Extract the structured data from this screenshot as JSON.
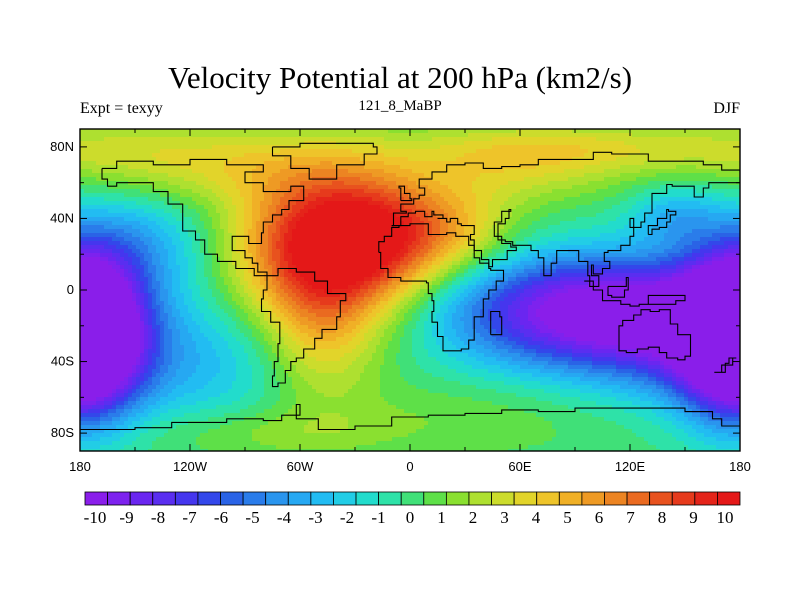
{
  "title": "Velocity Potential at 200 hPa (km2/s)",
  "left_string": "Expt = texyy",
  "center_string": "121_8_MaBP",
  "right_string": "DJF",
  "map": {
    "projection": "cylindrical equidistant",
    "lon_ticks": [
      "180",
      "120W",
      "60W",
      "0",
      "60E",
      "120E",
      "180"
    ],
    "lat_ticks": [
      "80N",
      "40N",
      "0",
      "40S",
      "80S"
    ]
  },
  "colorbar": {
    "labels": [
      "-10",
      "-9",
      "-8",
      "-7",
      "-6",
      "-5",
      "-4",
      "-3",
      "-2",
      "-1",
      "0",
      "1",
      "2",
      "3",
      "4",
      "5",
      "6",
      "7",
      "8",
      "9",
      "10"
    ],
    "colors": [
      "#8a1eea",
      "#7d22ee",
      "#6a26f0",
      "#5a2ef0",
      "#4536ee",
      "#3347ea",
      "#2a63e6",
      "#2a7cea",
      "#2a95ee",
      "#26a8f2",
      "#22bcf2",
      "#22cde6",
      "#22dccc",
      "#2ee2a8",
      "#40e078",
      "#5ee048",
      "#8ae030",
      "#aee030",
      "#ccdc2c",
      "#e2d42a",
      "#eec42a",
      "#f0b026",
      "#ee9a24",
      "#ec8422",
      "#ea6a20",
      "#e8521e",
      "#e63a1c",
      "#e4241a",
      "#e41818"
    ]
  },
  "chart_data": {
    "type": "heatmap",
    "title": "Velocity Potential at 200 hPa (km2/s)",
    "variable": "Velocity Potential",
    "level": "200 hPa",
    "units": "km2/s",
    "season": "DJF",
    "experiment": "texyy",
    "run": "121_8_MaBP",
    "xlim": [
      -180,
      180
    ],
    "ylim": [
      -90,
      90
    ],
    "color_levels": [
      -10,
      -9,
      -8,
      -7,
      -6,
      -5,
      -4,
      -3,
      -2,
      -1,
      0,
      1,
      2,
      3,
      4,
      5,
      6,
      7,
      8,
      9,
      10
    ],
    "field_centers": [
      {
        "lon": -45,
        "lat": 25,
        "value": 10.5
      },
      {
        "lon": -20,
        "lat": 30,
        "value": 9.5
      },
      {
        "lon": -50,
        "lat": -20,
        "value": 8.5
      },
      {
        "lon": 20,
        "lat": 35,
        "value": 7
      },
      {
        "lon": 100,
        "lat": -10,
        "value": -11
      },
      {
        "lon": 145,
        "lat": -30,
        "value": -10
      },
      {
        "lon": -175,
        "lat": -25,
        "value": -9
      },
      {
        "lon": 145,
        "lat": 40,
        "value": -3
      },
      {
        "lon": -150,
        "lat": 25,
        "value": -2
      },
      {
        "lon": 60,
        "lat": 70,
        "value": 4
      }
    ]
  }
}
